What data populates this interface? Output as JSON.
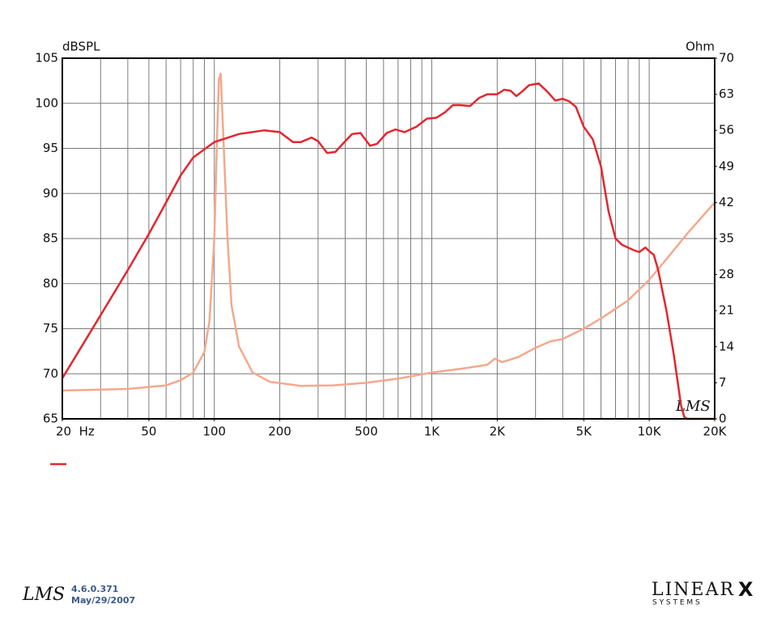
{
  "chart_data": {
    "type": "line",
    "y_label": "dBSPL",
    "y2_label": "Ohm",
    "annotations": [
      "LMS"
    ],
    "xscale": "log",
    "xlim": [
      20,
      20000
    ],
    "xticks": [
      {
        "value": 20,
        "label": "20  Hz"
      },
      50,
      100,
      200,
      500,
      {
        "value": 1000,
        "label": "1K"
      },
      {
        "value": 2000,
        "label": "2K"
      },
      {
        "value": 5000,
        "label": "5K"
      },
      {
        "value": 10000,
        "label": "10K"
      },
      {
        "value": 20000,
        "label": "20K"
      }
    ],
    "xgrid": [
      30,
      40,
      50,
      60,
      70,
      80,
      90,
      100,
      200,
      300,
      400,
      500,
      600,
      700,
      800,
      900,
      1000,
      2000,
      3000,
      4000,
      5000,
      6000,
      7000,
      8000,
      9000,
      10000
    ],
    "ylim": [
      65,
      105
    ],
    "yticks": [
      65,
      70,
      75,
      80,
      85,
      90,
      95,
      100,
      105
    ],
    "y2lim": [
      0,
      70
    ],
    "y2ticks": [
      0,
      7,
      14,
      21,
      28,
      35,
      42,
      49,
      56,
      63,
      70
    ],
    "grid": true,
    "series": [
      {
        "color": "#e3262f",
        "x": [
          20,
          30,
          40,
          50,
          60,
          70,
          80,
          100,
          130,
          170,
          200,
          230,
          250,
          280,
          300,
          330,
          360,
          400,
          430,
          470,
          520,
          560,
          620,
          680,
          750,
          850,
          950,
          1050,
          1150,
          1250,
          1350,
          1500,
          1650,
          1800,
          2000,
          2150,
          2300,
          2450,
          2600,
          2800,
          3100,
          3400,
          3700,
          4000,
          4300,
          4600,
          5000,
          5500,
          6000,
          6500,
          7000,
          7500,
          8500,
          9000,
          9600,
          10000,
          10500,
          11000,
          12000,
          13000,
          14000,
          14500,
          15000,
          20000
        ],
        "values": [
          69.5,
          76.5,
          81.5,
          85.5,
          89,
          92,
          94,
          95.7,
          96.6,
          97,
          96.8,
          95.7,
          95.7,
          96.2,
          95.8,
          94.5,
          94.6,
          95.8,
          96.6,
          96.7,
          95.3,
          95.5,
          96.7,
          97.1,
          96.8,
          97.4,
          98.3,
          98.4,
          99.0,
          99.8,
          99.8,
          99.7,
          100.6,
          101.0,
          101.0,
          101.5,
          101.4,
          100.8,
          101.3,
          102.0,
          102.2,
          101.3,
          100.3,
          100.5,
          100.2,
          99.6,
          97.4,
          96.0,
          93.0,
          88.0,
          85.0,
          84.3,
          83.7,
          83.5,
          84.0,
          83.6,
          83.2,
          81.5,
          77,
          72,
          66.5,
          65.2,
          65,
          65
        ]
      },
      {
        "color": "#f4a88c",
        "axis": "y2",
        "x": [
          20,
          40,
          60,
          70,
          80,
          90,
          95,
          100,
          103,
          105,
          107,
          110,
          115,
          120,
          130,
          150,
          180,
          250,
          350,
          500,
          700,
          1000,
          1400,
          1800,
          1950,
          2100,
          2500,
          3000,
          3500,
          4000,
          5000,
          6000,
          8000,
          10000,
          12000,
          15000,
          20000
        ],
        "values": [
          5.5,
          5.8,
          6.5,
          7.5,
          9,
          13,
          19,
          35,
          55,
          66,
          67,
          55,
          35,
          22,
          14,
          9,
          7.2,
          6.4,
          6.5,
          7,
          7.8,
          9,
          9.8,
          10.5,
          11.7,
          11,
          12,
          13.8,
          15,
          15.5,
          17.5,
          19.5,
          23,
          27,
          31,
          36,
          42
        ]
      }
    ]
  },
  "footer": {
    "logo": "LMS",
    "version": "4.6.0.371",
    "date": "May/29/2007",
    "brand": "LINEAR",
    "brand_mark": "X",
    "brand_sub": "S Y S T E M S"
  }
}
